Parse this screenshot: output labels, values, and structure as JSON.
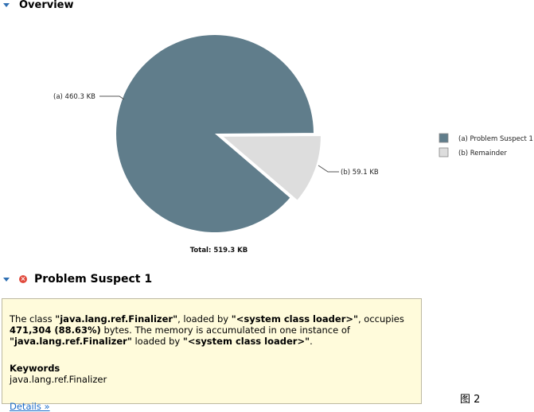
{
  "overview": {
    "title": "Overview"
  },
  "chart_data": {
    "type": "pie",
    "title": "",
    "series": [
      {
        "key": "(a)",
        "label": "(a)  Problem Suspect 1",
        "slice_label": "(a)  460.3 KB",
        "value": 460.3,
        "color": "#607d8b"
      },
      {
        "key": "(b)",
        "label": "(b)  Remainder",
        "slice_label": "(b)  59.1 KB",
        "value": 59.1,
        "color": "#dddddd"
      }
    ],
    "total_label": "Total: 519.3 KB",
    "legend_position": "right"
  },
  "problem": {
    "title": "Problem Suspect 1",
    "desc_prefix": "The class ",
    "class_name": "\"java.lang.ref.Finalizer\"",
    "loaded_by": ", loaded by ",
    "loader": "\"<system class loader>\"",
    "occupies": ", occupies",
    "bytes": "471,304 (88.63%)",
    "bytes_suffix": " bytes. The memory is accumulated in one instance of",
    "instance_class": "\"java.lang.ref.Finalizer\"",
    "loaded_by2": " loaded by ",
    "loader2": "\"<system class loader>\"",
    "period": ".",
    "keywords_title": "Keywords",
    "keywords_value": "java.lang.ref.Finalizer",
    "details_link": "Details »"
  },
  "figure_label": "图 2"
}
